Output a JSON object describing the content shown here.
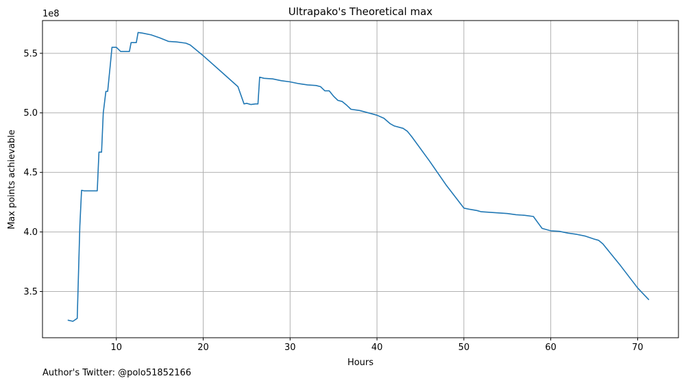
{
  "chart_data": {
    "type": "line",
    "title": "Ultrapako's Theoretical max",
    "xlabel": "Hours",
    "ylabel": "Max points achievable",
    "y_scale_label": "1e8",
    "xlim": [
      1.5,
      74.7
    ],
    "ylim": [
      3.112,
      5.775
    ],
    "x_ticks": [
      10,
      20,
      30,
      40,
      50,
      60,
      70
    ],
    "x_tick_labels": [
      "10",
      "20",
      "30",
      "40",
      "50",
      "60",
      "70"
    ],
    "y_ticks": [
      3.5,
      4.0,
      4.5,
      5.0,
      5.5
    ],
    "y_tick_labels": [
      "3.5",
      "4.0",
      "4.5",
      "5.0",
      "5.5"
    ],
    "grid": true,
    "series": [
      {
        "color": "#1f77b4",
        "x": [
          4.4,
          5.0,
          5.5,
          5.8,
          6.0,
          6.3,
          6.5,
          7.0,
          7.5,
          7.8,
          8.0,
          8.3,
          8.5,
          8.8,
          9.0,
          9.3,
          9.5,
          10.0,
          10.5,
          11.0,
          11.5,
          11.7,
          12.0,
          12.3,
          12.5,
          13.0,
          14.0,
          15.0,
          16.0,
          17.0,
          18.0,
          18.5,
          19.0,
          19.5,
          20.0,
          22.0,
          24.0,
          24.7,
          25.0,
          25.5,
          26.0,
          26.3,
          26.5,
          27.0,
          28.0,
          29.0,
          30.0,
          31.0,
          32.0,
          33.0,
          33.5,
          34.0,
          34.5,
          35.0,
          35.5,
          36.0,
          36.5,
          37.0,
          38.0,
          39.0,
          40.0,
          40.8,
          41.5,
          42.0,
          43.0,
          43.5,
          44.0,
          46.0,
          48.0,
          50.0,
          50.7,
          51.5,
          52.0,
          53.0,
          54.0,
          55.0,
          56.0,
          57.0,
          58.0,
          58.5,
          59.0,
          59.5,
          60.0,
          61.0,
          62.0,
          63.0,
          64.0,
          65.0,
          65.5,
          66.0,
          68.0,
          70.0,
          71.3
        ],
        "y": [
          3.26,
          3.25,
          3.275,
          4.05,
          4.35,
          4.345,
          4.345,
          4.345,
          4.345,
          4.345,
          4.67,
          4.67,
          5.0,
          5.18,
          5.18,
          5.4,
          5.55,
          5.55,
          5.515,
          5.515,
          5.515,
          5.59,
          5.59,
          5.59,
          5.675,
          5.67,
          5.655,
          5.63,
          5.6,
          5.595,
          5.585,
          5.57,
          5.54,
          5.51,
          5.48,
          5.35,
          5.22,
          5.075,
          5.08,
          5.07,
          5.075,
          5.075,
          5.3,
          5.29,
          5.285,
          5.27,
          5.26,
          5.245,
          5.235,
          5.23,
          5.22,
          5.185,
          5.185,
          5.14,
          5.105,
          5.095,
          5.065,
          5.03,
          5.02,
          5.0,
          4.98,
          4.955,
          4.91,
          4.89,
          4.87,
          4.845,
          4.8,
          4.6,
          4.39,
          4.2,
          4.19,
          4.18,
          4.17,
          4.165,
          4.16,
          4.155,
          4.145,
          4.14,
          4.13,
          4.08,
          4.03,
          4.02,
          4.01,
          4.005,
          3.99,
          3.98,
          3.965,
          3.94,
          3.93,
          3.9,
          3.72,
          3.53,
          3.43
        ]
      }
    ],
    "footnote": "Author's Twitter: @polo51852166"
  }
}
